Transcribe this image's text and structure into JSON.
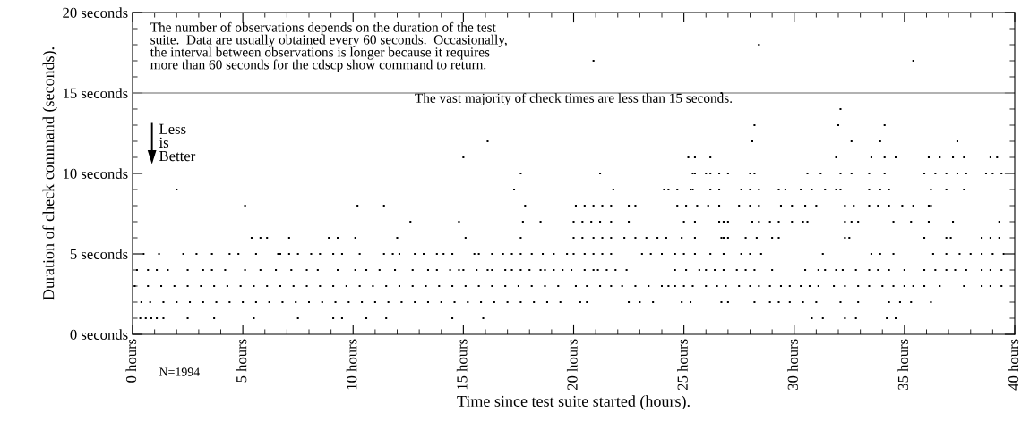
{
  "chart_data": {
    "type": "scatter",
    "xlabel": "Time since test suite started (hours).",
    "ylabel": "Duration of check command (seconds).",
    "xlim": [
      0,
      40
    ],
    "ylim": [
      0,
      20
    ],
    "xticks": [
      {
        "value": 0,
        "label": "0 hours"
      },
      {
        "value": 5,
        "label": "5 hours"
      },
      {
        "value": 10,
        "label": "10 hours"
      },
      {
        "value": 15,
        "label": "15 hours"
      },
      {
        "value": 20,
        "label": "20 hours"
      },
      {
        "value": 25,
        "label": "25 hours"
      },
      {
        "value": 30,
        "label": "30 hours"
      },
      {
        "value": 35,
        "label": "35 hours"
      },
      {
        "value": 40,
        "label": "40 hours"
      }
    ],
    "yticks": [
      {
        "value": 0,
        "label": "0 seconds"
      },
      {
        "value": 5,
        "label": "5 seconds"
      },
      {
        "value": 10,
        "label": "10 seconds"
      },
      {
        "value": 15,
        "label": "15 seconds"
      },
      {
        "value": 20,
        "label": "20 seconds"
      }
    ],
    "grid": false,
    "marker": "square",
    "legend": false,
    "ref_lines": [
      {
        "axis": "y",
        "value": 15,
        "label": "The vast majority of check times are less than 15 seconds.",
        "color": "#999999"
      }
    ],
    "annotations": [
      "The number of observations depends on the duration of the test\nsuite.  Data are usually obtained every 60 seconds.  Occasionally,\nthe interval between observations is longer because it requires\nmore than 60 seconds for the cdscp show command to return.",
      "N=1994",
      "Less\nis\nBetter"
    ],
    "series": [
      {
        "color": "#000000",
        "x": [
          0.35,
          0.6,
          0.85,
          1.1,
          1.4,
          2.5,
          3.7,
          5.5,
          7.5,
          9.1,
          9.5,
          10.6,
          11.5,
          14.5,
          15.9,
          30.8,
          31.3,
          32.3,
          32.8,
          34.2,
          34.6
        ],
        "values": [
          1,
          1,
          1,
          1,
          1,
          1,
          1,
          1,
          1,
          1,
          1,
          1,
          1,
          1,
          1,
          1,
          1,
          1,
          1,
          1,
          1
        ]
      },
      {
        "color": "#000000",
        "x": [
          0.4,
          0.8,
          1.4,
          2.0,
          2.6,
          3.2,
          3.8,
          4.4,
          5.0,
          5.6,
          6.2,
          6.8,
          7.4,
          8.0,
          8.6,
          9.2,
          9.8,
          10.4,
          11.0,
          11.6,
          12.2,
          12.8,
          13.4,
          14.0,
          14.6,
          15.2,
          15.8,
          16.4,
          17.0,
          17.6,
          18.2,
          18.8,
          19.4,
          20.3,
          20.6,
          22.5,
          23.0,
          23.6,
          24.9,
          25.3,
          26.7,
          27.0,
          28.2,
          28.9,
          29.3,
          29.8,
          30.4,
          31.0,
          32.1,
          32.9,
          34.3,
          34.8,
          35.3,
          36.2
        ],
        "values": [
          2,
          2,
          2,
          2,
          2,
          2,
          2,
          2,
          2,
          2,
          2,
          2,
          2,
          2,
          2,
          2,
          2,
          2,
          2,
          2,
          2,
          2,
          2,
          2,
          2,
          2,
          2,
          2,
          2,
          2,
          2,
          2,
          2,
          2,
          2,
          2,
          2,
          2,
          2,
          2,
          2,
          2,
          2,
          2,
          2,
          2,
          2,
          2,
          2,
          2,
          2,
          2,
          2,
          2
        ]
      },
      {
        "color": "#000000",
        "x": [
          0.1,
          0.7,
          1.3,
          1.9,
          2.5,
          3.1,
          3.7,
          4.3,
          4.9,
          5.5,
          6.1,
          6.7,
          7.3,
          7.9,
          8.5,
          9.1,
          9.7,
          10.3,
          10.9,
          11.5,
          12.1,
          12.7,
          13.3,
          13.9,
          14.5,
          15.1,
          15.7,
          16.3,
          16.9,
          17.5,
          18.1,
          18.7,
          19.3,
          20.1,
          20.6,
          21.2,
          21.7,
          22.2,
          22.8,
          23.4,
          24.0,
          24.3,
          24.6,
          25.0,
          25.4,
          26.0,
          26.5,
          26.9,
          27.5,
          28.0,
          28.4,
          28.9,
          29.4,
          29.8,
          30.3,
          30.7,
          31.1,
          31.8,
          32.3,
          32.9,
          33.4,
          34.0,
          34.5,
          35.0,
          35.4,
          35.9,
          36.6,
          37.7,
          38.5,
          38.9,
          39.4
        ],
        "values": [
          3,
          3,
          3,
          3,
          3,
          3,
          3,
          3,
          3,
          3,
          3,
          3,
          3,
          3,
          3,
          3,
          3,
          3,
          3,
          3,
          3,
          3,
          3,
          3,
          3,
          3,
          3,
          3,
          3,
          3,
          3,
          3,
          3,
          3,
          3,
          3,
          3,
          3,
          3,
          3,
          3,
          3,
          3,
          3,
          3,
          3,
          3,
          3,
          3,
          3,
          3,
          3,
          3,
          3,
          3,
          3,
          3,
          3,
          3,
          3,
          3,
          3,
          3,
          3,
          3,
          3,
          3,
          3,
          3,
          3,
          3
        ]
      },
      {
        "color": "#000000",
        "x": [
          0.2,
          0.7,
          1.1,
          1.6,
          2.5,
          3.2,
          3.6,
          4.2,
          5.1,
          5.8,
          6.5,
          7.2,
          7.9,
          8.4,
          9.3,
          10.1,
          10.6,
          11.2,
          11.9,
          12.7,
          13.4,
          13.8,
          14.4,
          14.8,
          15.0,
          15.6,
          16.1,
          16.3,
          16.9,
          17.2,
          17.6,
          18.0,
          18.5,
          18.7,
          19.1,
          19.5,
          19.9,
          20.5,
          20.9,
          21.1,
          21.5,
          21.9,
          22.4,
          24.6,
          25.1,
          25.7,
          26.0,
          26.4,
          26.8,
          27.4,
          27.8,
          28.2,
          29.0,
          30.5,
          31.1,
          31.4,
          31.9,
          32.2,
          32.8,
          33.4,
          33.8,
          34.3,
          35.0,
          35.9,
          36.4,
          36.9,
          37.3,
          37.8,
          38.5,
          38.9,
          39.4
        ],
        "values": [
          4,
          4,
          4,
          4,
          4,
          4,
          4,
          4,
          4,
          4,
          4,
          4,
          4,
          4,
          4,
          4,
          4,
          4,
          4,
          4,
          4,
          4,
          4,
          4,
          4,
          4,
          4,
          4,
          4,
          4,
          4,
          4,
          4,
          4,
          4,
          4,
          4,
          4,
          4,
          4,
          4,
          4,
          4,
          4,
          4,
          4,
          4,
          4,
          4,
          4,
          4,
          4,
          4,
          4,
          4,
          4,
          4,
          4,
          4,
          4,
          4,
          4,
          4,
          4,
          4,
          4,
          4,
          4,
          4,
          4,
          4
        ]
      },
      {
        "color": "#000000",
        "x": [
          0.5,
          1.2,
          2.3,
          2.9,
          3.6,
          4.4,
          4.8,
          5.6,
          6.6,
          6.7,
          7.1,
          7.5,
          8.1,
          8.5,
          9.1,
          9.5,
          10.3,
          11.4,
          11.8,
          12.1,
          12.8,
          13.2,
          13.8,
          14.1,
          14.5,
          15.5,
          15.7,
          16.3,
          16.8,
          17.2,
          17.6,
          18.1,
          18.6,
          19.1,
          19.7,
          20.0,
          20.5,
          20.9,
          21.3,
          21.7,
          23.1,
          23.5,
          24.0,
          24.6,
          25.0,
          25.5,
          26.2,
          26.8,
          27.6,
          28.0,
          28.5,
          31.3,
          33.5,
          33.9,
          34.5,
          36.3,
          36.9,
          37.5,
          38.0,
          38.5,
          39.0,
          39.5
        ],
        "values": [
          5,
          5,
          5,
          5,
          5,
          5,
          5,
          5,
          5,
          5,
          5,
          5,
          5,
          5,
          5,
          5,
          5,
          5,
          5,
          5,
          5,
          5,
          5,
          5,
          5,
          5,
          5,
          5,
          5,
          5,
          5,
          5,
          5,
          5,
          5,
          5,
          5,
          5,
          5,
          5,
          5,
          5,
          5,
          5,
          5,
          5,
          5,
          5,
          5,
          5,
          5,
          5,
          5,
          5,
          5,
          5,
          5,
          5,
          5,
          5,
          5,
          5
        ]
      },
      {
        "color": "#000000",
        "x": [
          5.4,
          5.8,
          6.1,
          7.1,
          8.9,
          9.3,
          10.1,
          12.0,
          15.1,
          17.6,
          20.0,
          20.4,
          20.9,
          21.3,
          21.7,
          22.3,
          22.8,
          23.3,
          23.8,
          24.2,
          24.9,
          25.5,
          26.7,
          26.8,
          27.0,
          27.8,
          28.3,
          29.0,
          29.3,
          32.3,
          32.5,
          35.9,
          36.9,
          37.1,
          38.5,
          38.9,
          39.3
        ],
        "values": [
          6,
          6,
          6,
          6,
          6,
          6,
          6,
          6,
          6,
          6,
          6,
          6,
          6,
          6,
          6,
          6,
          6,
          6,
          6,
          6,
          6,
          6,
          6,
          6,
          6,
          6,
          6,
          6,
          6,
          6,
          6,
          6,
          6,
          6,
          6,
          6,
          6
        ]
      },
      {
        "color": "#000000",
        "x": [
          12.6,
          14.8,
          17.7,
          18.5,
          20.0,
          20.4,
          20.8,
          21.2,
          21.7,
          22.5,
          25.0,
          25.5,
          26.6,
          26.8,
          27.0,
          28.1,
          28.4,
          28.9,
          29.3,
          29.9,
          30.4,
          30.6,
          32.3,
          32.6,
          32.9,
          34.5,
          35.3,
          36.1,
          37.2,
          39.3
        ],
        "values": [
          7,
          7,
          7,
          7,
          7,
          7,
          7,
          7,
          7,
          7,
          7,
          7,
          7,
          7,
          7,
          7,
          7,
          7,
          7,
          7,
          7,
          7,
          7,
          7,
          7,
          7,
          7,
          7,
          7,
          7
        ]
      },
      {
        "color": "#000000",
        "x": [
          5.1,
          10.2,
          11.4,
          17.8,
          20.1,
          20.5,
          20.9,
          21.3,
          21.7,
          22.5,
          22.8,
          24.7,
          25.1,
          25.6,
          26.1,
          26.6,
          27.5,
          28.0,
          28.4,
          29.4,
          29.9,
          30.5,
          31.0,
          32.3,
          32.7,
          33.4,
          33.8,
          34.3,
          34.9,
          35.4,
          36.1,
          36.2
        ],
        "values": [
          8,
          8,
          8,
          8,
          8,
          8,
          8,
          8,
          8,
          8,
          8,
          8,
          8,
          8,
          8,
          8,
          8,
          8,
          8,
          8,
          8,
          8,
          8,
          8,
          8,
          8,
          8,
          8,
          8,
          8,
          8,
          8
        ]
      },
      {
        "color": "#000000",
        "x": [
          2.0,
          17.3,
          21.8,
          24.1,
          24.3,
          24.7,
          25.3,
          25.4,
          26.2,
          26.6,
          27.6,
          28.0,
          28.4,
          29.3,
          29.6,
          30.3,
          30.8,
          31.4,
          31.9,
          32.1,
          33.4,
          33.9,
          34.3,
          36.2,
          36.9,
          37.7
        ],
        "values": [
          9,
          9,
          9,
          9,
          9,
          9,
          9,
          9,
          9,
          9,
          9,
          9,
          9,
          9,
          9,
          9,
          9,
          9,
          9,
          9,
          9,
          9,
          9,
          9,
          9,
          9
        ]
      },
      {
        "color": "#000000",
        "x": [
          17.6,
          21.2,
          25.4,
          25.5,
          26.0,
          26.2,
          26.6,
          27.0,
          28.0,
          28.2,
          30.6,
          31.2,
          32.1,
          32.6,
          33.4,
          34.1,
          35.9,
          36.4,
          36.9,
          37.4,
          37.8,
          38.7,
          39.0,
          39.4
        ],
        "values": [
          10,
          10,
          10,
          10,
          10,
          10,
          10,
          10,
          10,
          10,
          10,
          10,
          10,
          10,
          10,
          10,
          10,
          10,
          10,
          10,
          10,
          10,
          10,
          10
        ]
      },
      {
        "color": "#000000",
        "x": [
          15.0,
          25.2,
          25.5,
          26.2,
          31.9,
          33.5,
          34.1,
          34.6,
          36.1,
          36.6,
          37.2,
          37.7,
          38.9,
          39.2
        ],
        "values": [
          11,
          11,
          11,
          11,
          11,
          11,
          11,
          11,
          11,
          11,
          11,
          11,
          11,
          11
        ]
      },
      {
        "color": "#000000",
        "x": [
          16.1,
          28.1,
          32.6,
          33.9,
          37.4
        ],
        "values": [
          12,
          12,
          12,
          12,
          12
        ]
      },
      {
        "color": "#000000",
        "x": [
          28.2,
          32.0,
          34.1
        ],
        "values": [
          13,
          13,
          13
        ]
      },
      {
        "color": "#000000",
        "x": [
          32.1
        ],
        "values": [
          14
        ]
      },
      {
        "color": "#000000",
        "x": [
          26.7
        ],
        "values": [
          15
        ]
      },
      {
        "color": "#000000",
        "x": [
          20.9,
          35.4
        ],
        "values": [
          17,
          17
        ]
      },
      {
        "color": "#000000",
        "x": [
          28.4
        ],
        "values": [
          18
        ]
      }
    ]
  }
}
